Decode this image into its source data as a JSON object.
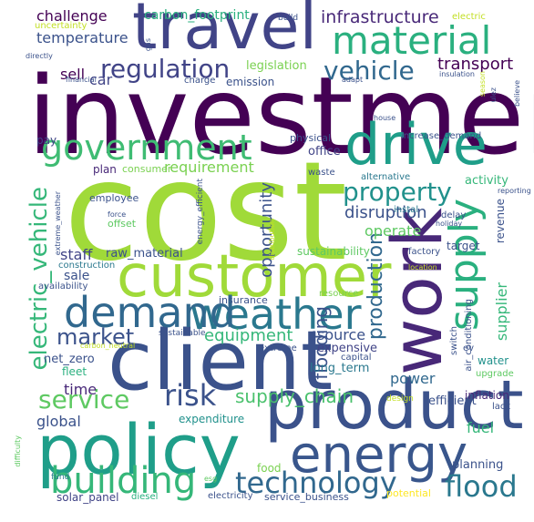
{
  "words": [
    {
      "text": "investment",
      "color": "#440154"
    },
    {
      "text": "cost",
      "color": "#a0da39"
    },
    {
      "text": "customer",
      "color": "#a0da39"
    },
    {
      "text": "client",
      "color": "#3b528b"
    },
    {
      "text": "product",
      "color": "#3b528b"
    },
    {
      "text": "policy",
      "color": "#1f9e89"
    },
    {
      "text": "travel",
      "color": "#414487"
    },
    {
      "text": "work",
      "color": "#482878"
    },
    {
      "text": "drive",
      "color": "#1f9e89"
    },
    {
      "text": "energy",
      "color": "#39568c"
    },
    {
      "text": "government",
      "color": "#3fbc73"
    },
    {
      "text": "material",
      "color": "#2ab07f"
    },
    {
      "text": "weather",
      "color": "#2a788e"
    },
    {
      "text": "demand",
      "color": "#31688e"
    },
    {
      "text": "supply",
      "color": "#2ab07f"
    },
    {
      "text": "building",
      "color": "#35b779"
    },
    {
      "text": "technology",
      "color": "#31688e"
    },
    {
      "text": "flood",
      "color": "#2a788e"
    },
    {
      "text": "risk",
      "color": "#3b528b"
    },
    {
      "text": "service",
      "color": "#5ec962"
    },
    {
      "text": "property",
      "color": "#21918c"
    },
    {
      "text": "regulation",
      "color": "#414487"
    },
    {
      "text": "vehicle",
      "color": "#31688e"
    },
    {
      "text": "electric_vehicle",
      "color": "#35b779"
    },
    {
      "text": "production",
      "color": "#31688e"
    },
    {
      "text": "flooding",
      "color": "#3b528b"
    },
    {
      "text": "market",
      "color": "#3b528b"
    },
    {
      "text": "supply_chain",
      "color": "#4ac16d"
    },
    {
      "text": "infrastructure",
      "color": "#482878"
    },
    {
      "text": "opportunity",
      "color": "#3b528b"
    },
    {
      "text": "disruption",
      "color": "#3b528b"
    },
    {
      "text": "equipment",
      "color": "#35b779"
    },
    {
      "text": "requirement",
      "color": "#7ad151"
    },
    {
      "text": "operate",
      "color": "#5ec962"
    },
    {
      "text": "supplier",
      "color": "#35b779"
    },
    {
      "text": "transport",
      "color": "#440154"
    },
    {
      "text": "challenge",
      "color": "#440154"
    },
    {
      "text": "temperature",
      "color": "#3b528b"
    },
    {
      "text": "car",
      "color": "#414487"
    },
    {
      "text": "sell",
      "color": "#440154"
    },
    {
      "text": "staff",
      "color": "#414487"
    },
    {
      "text": "sale",
      "color": "#3b528b"
    },
    {
      "text": "source",
      "color": "#3b528b"
    },
    {
      "text": "time",
      "color": "#482878"
    },
    {
      "text": "power",
      "color": "#31688e"
    },
    {
      "text": "fuel",
      "color": "#35b779"
    },
    {
      "text": "global",
      "color": "#3b528b"
    },
    {
      "text": "carbon_footprint",
      "color": "#2ab07f"
    },
    {
      "text": "legislation",
      "color": "#7ad151"
    },
    {
      "text": "raw_material",
      "color": "#3b528b"
    },
    {
      "text": "net_zero",
      "color": "#3b528b"
    },
    {
      "text": "expensive",
      "color": "#414487"
    },
    {
      "text": "long_term",
      "color": "#2a788e"
    },
    {
      "text": "sustainability",
      "color": "#5ec962"
    },
    {
      "text": "office",
      "color": "#414487"
    },
    {
      "text": "activity",
      "color": "#35b779"
    },
    {
      "text": "efficient",
      "color": "#3b528b"
    },
    {
      "text": "inflation",
      "color": "#482878"
    },
    {
      "text": "planning",
      "color": "#3b528b"
    },
    {
      "text": "expenditure",
      "color": "#21918c"
    },
    {
      "text": "solar_panel",
      "color": "#414487"
    },
    {
      "text": "electricity",
      "color": "#3b528b"
    },
    {
      "text": "service_business",
      "color": "#3b528b"
    },
    {
      "text": "potential",
      "color": "#fde725"
    },
    {
      "text": "revenue",
      "color": "#3b528b"
    },
    {
      "text": "target",
      "color": "#3b528b"
    },
    {
      "text": "water",
      "color": "#21918c"
    },
    {
      "text": "fleet",
      "color": "#2ab07f"
    },
    {
      "text": "food",
      "color": "#7ad151"
    },
    {
      "text": "diesel",
      "color": "#2ab07f"
    },
    {
      "text": "plan",
      "color": "#482878"
    },
    {
      "text": "consumer",
      "color": "#7ad151"
    },
    {
      "text": "offset",
      "color": "#5ec962"
    },
    {
      "text": "employee",
      "color": "#3b528b"
    },
    {
      "text": "construction",
      "color": "#2a788e"
    },
    {
      "text": "availability",
      "color": "#3b528b"
    },
    {
      "text": "insurance",
      "color": "#3b528b"
    },
    {
      "text": "sustainable",
      "color": "#3b528b"
    },
    {
      "text": "physical",
      "color": "#3b528b"
    },
    {
      "text": "pay",
      "color": "#414487"
    },
    {
      "text": "increase_demand",
      "color": "#3b528b"
    },
    {
      "text": "alternative",
      "color": "#2a788e"
    },
    {
      "text": "waste",
      "color": "#3b528b"
    },
    {
      "text": "instal",
      "color": "#2a788e"
    },
    {
      "text": "delay",
      "color": "#3b528b"
    },
    {
      "text": "holiday",
      "color": "#3b528b"
    },
    {
      "text": "factory",
      "color": "#3b528b"
    },
    {
      "text": "resource",
      "color": "#7ad151"
    },
    {
      "text": "capital",
      "color": "#3b528b"
    },
    {
      "text": "extreme",
      "color": "#3b528b"
    },
    {
      "text": "carbon_neutral",
      "color": "#c2df23"
    },
    {
      "text": "design",
      "color": "#c2df23"
    },
    {
      "text": "lack",
      "color": "#3b528b"
    },
    {
      "text": "upgrade",
      "color": "#5ec962"
    },
    {
      "text": "switch",
      "color": "#3b528b"
    },
    {
      "text": "ev",
      "color": "#3b528b"
    },
    {
      "text": "air_conditioning",
      "color": "#3b528b"
    },
    {
      "text": "esg",
      "color": "#5ec962"
    },
    {
      "text": "fund",
      "color": "#2a788e"
    },
    {
      "text": "difficulty",
      "color": "#5ec962"
    },
    {
      "text": "emission",
      "color": "#3b528b"
    },
    {
      "text": "charge",
      "color": "#3b528b"
    },
    {
      "text": "adapt",
      "color": "#3b528b"
    },
    {
      "text": "house",
      "color": "#3b528b"
    },
    {
      "text": "financial",
      "color": "#3b528b"
    },
    {
      "text": "insulation",
      "color": "#3b528b"
    },
    {
      "text": "season",
      "color": "#c2df23"
    },
    {
      "text": "ulez",
      "color": "#3b528b"
    },
    {
      "text": "believe",
      "color": "#3b528b"
    },
    {
      "text": "build",
      "color": "#3b528b"
    },
    {
      "text": "electric",
      "color": "#c2df23"
    },
    {
      "text": "gas",
      "color": "#3b528b"
    },
    {
      "text": "uncertainty",
      "color": "#c2df23"
    },
    {
      "text": "directly",
      "color": "#3b528b"
    },
    {
      "text": "energy_efficient",
      "color": "#3b528b"
    },
    {
      "text": "distribution",
      "color": "#c2df23"
    },
    {
      "text": "extreme_weather",
      "color": "#3b528b"
    },
    {
      "text": "force",
      "color": "#3b528b"
    },
    {
      "text": "reporting",
      "color": "#3b528b"
    },
    {
      "text": "location",
      "color": "#c2df23"
    }
  ]
}
